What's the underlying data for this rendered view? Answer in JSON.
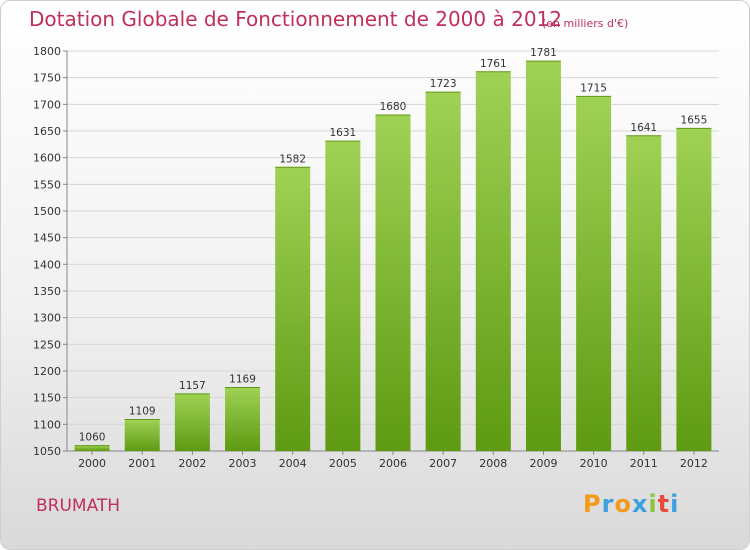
{
  "header": {
    "title": "Dotation Globale de Fonctionnement de 2000 à 2012",
    "unit": "(en milliers d'€)"
  },
  "footer": {
    "city": "BRUMATH",
    "logo": [
      "P",
      "r",
      "o",
      "x",
      "i",
      "t",
      "i"
    ],
    "logo_colors": [
      "#f39a1a",
      "#3ba0e0",
      "#f39a1a",
      "#3ba0e0",
      "#8cc63f",
      "#e84a3c",
      "#3ba0e0"
    ]
  },
  "colors": {
    "bar_top": "#9fd155",
    "bar_bottom": "#5e9a12",
    "text_accent": "#c0305a"
  },
  "chart_data": {
    "type": "bar",
    "title": "Dotation Globale de Fonctionnement de 2000 à 2012",
    "subtitle": "(en milliers d'€)",
    "categories": [
      "2000",
      "2001",
      "2002",
      "2003",
      "2004",
      "2005",
      "2006",
      "2007",
      "2008",
      "2009",
      "2010",
      "2011",
      "2012"
    ],
    "values": [
      1060,
      1109,
      1157,
      1169,
      1582,
      1631,
      1680,
      1723,
      1761,
      1781,
      1715,
      1641,
      1655
    ],
    "ylim": [
      1050,
      1800
    ],
    "yticks": [
      1050,
      1100,
      1150,
      1200,
      1250,
      1300,
      1350,
      1400,
      1450,
      1500,
      1550,
      1600,
      1650,
      1700,
      1750,
      1800
    ],
    "grid": true,
    "data_labels": true
  }
}
